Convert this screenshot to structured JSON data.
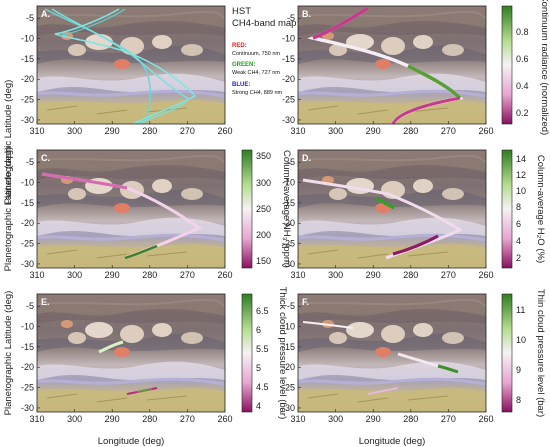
{
  "figure": {
    "common": {
      "xlabel": "Longitude (deg)",
      "ylabel": "Planetographic Latitude (deg)",
      "xticks": [
        "310",
        "300",
        "290",
        "280",
        "270",
        "260"
      ],
      "yticks": [
        "-5",
        "-10",
        "-15",
        "-20",
        "-25",
        "-30"
      ]
    },
    "legend": {
      "title_line1": "HST",
      "title_line2": "CH4-band map",
      "red_key": "RED:",
      "red_desc": "Continuum, 750 nm",
      "green_key": "GREEN:",
      "green_desc": "Weak CH4, 727 nm",
      "blue_key": "BLUE:",
      "blue_desc": "Strong CH4, 889 nm",
      "red_color": "#e0201a",
      "green_color": "#1aa51a",
      "blue_color": "#1a2ad0"
    },
    "panels": [
      {
        "label": "A."
      },
      {
        "label": "B.",
        "colorbar_label": "Continuum radiance (normalized)",
        "colorbar_ticks": [
          "0.8",
          "0.6",
          "0.4",
          "0.2"
        ]
      },
      {
        "label": "C.",
        "colorbar_label": "Column-average NH₃ (ppm)",
        "colorbar_ticks": [
          "350",
          "300",
          "250",
          "200",
          "150"
        ]
      },
      {
        "label": "D.",
        "colorbar_label": "Column-average H₂O (%)",
        "colorbar_ticks": [
          "14",
          "12",
          "10",
          "8",
          "6",
          "4",
          "2"
        ]
      },
      {
        "label": "E.",
        "colorbar_label": "Thick cloud pressure level (bar)",
        "colorbar_ticks": [
          "6.5",
          "6",
          "5.5",
          "5",
          "4.5",
          "4"
        ]
      },
      {
        "label": "F.",
        "colorbar_label": "Thin cloud pressure level (bar)",
        "colorbar_ticks": [
          "11",
          "10",
          "9",
          "8"
        ]
      }
    ]
  }
}
